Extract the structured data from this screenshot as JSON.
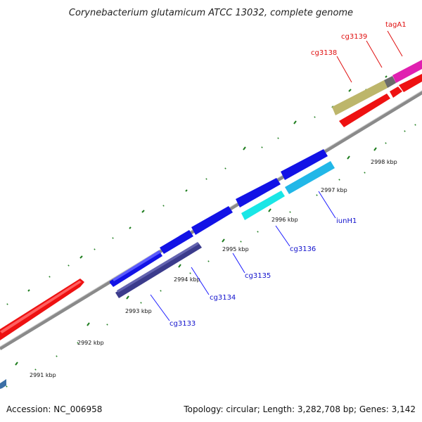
{
  "title": "Corynebacterium glutamicum ATCC 13032, complete genome",
  "footer": {
    "accession": "Accession: NC_006958",
    "topology": "Topology: circular; Length: 3,282,708 bp; Genes: 3,142"
  },
  "colors": {
    "backbone": "#8a8a8a",
    "tick": "#1e7d1e",
    "forward_label": "#e01010",
    "reverse_label": "#1010cc"
  },
  "kbp_labels": [
    "2991 kbp",
    "2992 kbp",
    "2993 kbp",
    "2994 kbp",
    "2995 kbp",
    "2996 kbp",
    "2997 kbp",
    "2998 kbp"
  ],
  "gene_labels": [
    {
      "name": "cg3133",
      "color": "#1010cc"
    },
    {
      "name": "cg3134",
      "color": "#1010cc"
    },
    {
      "name": "cg3135",
      "color": "#1010cc"
    },
    {
      "name": "cg3136",
      "color": "#1010cc"
    },
    {
      "name": "iunH1",
      "color": "#1010cc"
    },
    {
      "name": "cg3138",
      "color": "#e01010"
    },
    {
      "name": "cg3139",
      "color": "#e01010"
    },
    {
      "name": "tagA1",
      "color": "#e01010"
    }
  ]
}
